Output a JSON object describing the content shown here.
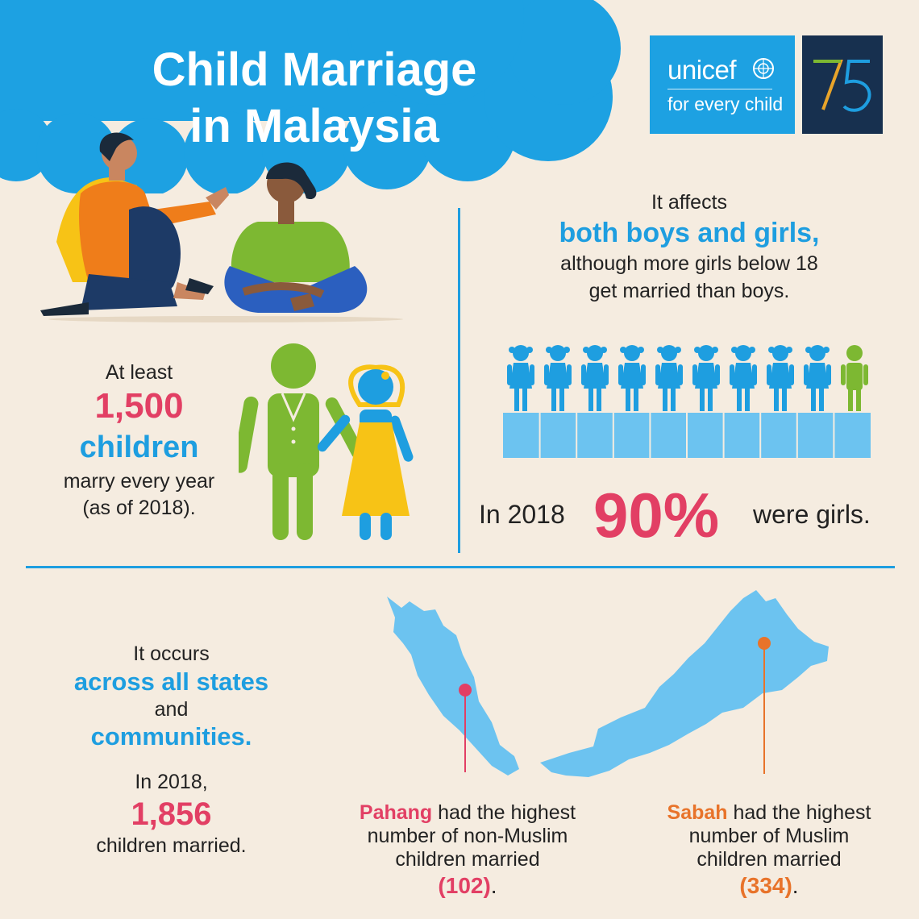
{
  "title": {
    "line1": "Child Marriage",
    "line2": "in Malaysia"
  },
  "logo": {
    "brand": "unicef",
    "tagline": "for every child",
    "anniversary": "75"
  },
  "colors": {
    "background": "#f5ece0",
    "blue": "#1e9ee0",
    "red": "#e23f64",
    "orange": "#e8732a",
    "green": "#7db832",
    "yellow": "#f7c316",
    "light_blue": "#6cc3f0",
    "navy": "#17304f"
  },
  "gender_section": {
    "line1": "It affects",
    "highlight": "both boys and girls,",
    "line3": "although more girls below 18",
    "line4": "get married than boys.",
    "figures": {
      "girls": 9,
      "boys": 1
    },
    "stat_prefix": "In 2018",
    "stat_value": "90%",
    "stat_suffix": "were girls."
  },
  "yearly_section": {
    "line1": "At least",
    "number": "1,500",
    "unit": "children",
    "line4": "marry every year",
    "line5": "(as of 2018)."
  },
  "states_section": {
    "line1": "It occurs",
    "highlight1": "across all states",
    "line3": "and",
    "highlight2": "communities.",
    "line5": "In 2018,",
    "number": "1,856",
    "line7": "children married."
  },
  "pahang": {
    "state": "Pahang",
    "l1": " had the highest",
    "l2": "number of non-Muslim",
    "l3": "children married",
    "value": "(102)",
    "end": "."
  },
  "sabah": {
    "state": "Sabah",
    "l1": " had the highest",
    "l2": "number of Muslim",
    "l3": "children married",
    "value": "(334)",
    "end": "."
  },
  "icons": [
    "cloud-shape",
    "couple-illustration",
    "groom-icon",
    "bride-icon",
    "girl-figure-icon",
    "boy-figure-icon",
    "malaysia-map",
    "location-pin-icon"
  ]
}
